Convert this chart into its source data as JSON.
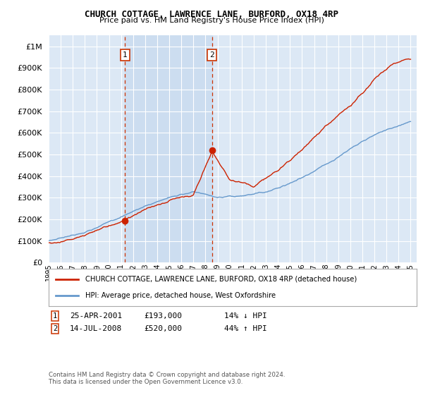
{
  "title": "CHURCH COTTAGE, LAWRENCE LANE, BURFORD, OX18 4RP",
  "subtitle": "Price paid vs. HM Land Registry's House Price Index (HPI)",
  "background_color": "#ffffff",
  "plot_bg_color": "#dce8f5",
  "grid_color": "#ffffff",
  "ylim": [
    0,
    1050000
  ],
  "yticks": [
    0,
    100000,
    200000,
    300000,
    400000,
    500000,
    600000,
    700000,
    800000,
    900000,
    1000000
  ],
  "ytick_labels": [
    "£0",
    "£100K",
    "£200K",
    "£300K",
    "£400K",
    "£500K",
    "£600K",
    "£700K",
    "£800K",
    "£900K",
    "£1M"
  ],
  "xlim_start": 1995.0,
  "xlim_end": 2025.5,
  "xtick_years": [
    1995,
    1996,
    1997,
    1998,
    1999,
    2000,
    2001,
    2002,
    2003,
    2004,
    2005,
    2006,
    2007,
    2008,
    2009,
    2010,
    2011,
    2012,
    2013,
    2014,
    2015,
    2016,
    2017,
    2018,
    2019,
    2020,
    2021,
    2022,
    2023,
    2024,
    2025
  ],
  "hpi_color": "#6699cc",
  "sale_color": "#cc2200",
  "marker1_year": 2001.32,
  "marker1_value": 193000,
  "marker2_year": 2008.54,
  "marker2_value": 520000,
  "vline_color": "#cc3300",
  "sale_highlight_color": "#ccddf0",
  "legend_sale_label": "CHURCH COTTAGE, LAWRENCE LANE, BURFORD, OX18 4RP (detached house)",
  "legend_hpi_label": "HPI: Average price, detached house, West Oxfordshire",
  "note1_date": "25-APR-2001",
  "note1_price": "£193,000",
  "note1_pct": "14% ↓ HPI",
  "note2_date": "14-JUL-2008",
  "note2_price": "£520,000",
  "note2_pct": "44% ↑ HPI",
  "footnote": "Contains HM Land Registry data © Crown copyright and database right 2024.\nThis data is licensed under the Open Government Licence v3.0."
}
